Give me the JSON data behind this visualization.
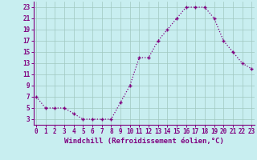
{
  "x": [
    0,
    1,
    2,
    3,
    4,
    5,
    6,
    7,
    8,
    9,
    10,
    11,
    12,
    13,
    14,
    15,
    16,
    17,
    18,
    19,
    20,
    21,
    22,
    23
  ],
  "y": [
    7,
    5,
    5,
    5,
    4,
    3,
    3,
    3,
    3,
    6,
    9,
    14,
    14,
    17,
    19,
    21,
    23,
    23,
    23,
    21,
    17,
    15,
    13,
    12
  ],
  "line_color": "#800080",
  "marker": "+",
  "marker_color": "#800080",
  "bg_color": "#c8eef0",
  "grid_color": "#a0c8c0",
  "xlabel": "Windchill (Refroidissement éolien,°C)",
  "xlabel_color": "#800080",
  "tick_color": "#800080",
  "spine_color": "#800080",
  "xlim": [
    0,
    23
  ],
  "ylim": [
    2,
    24
  ],
  "yticks": [
    3,
    5,
    7,
    9,
    11,
    13,
    15,
    17,
    19,
    21,
    23
  ],
  "xticks": [
    0,
    1,
    2,
    3,
    4,
    5,
    6,
    7,
    8,
    9,
    10,
    11,
    12,
    13,
    14,
    15,
    16,
    17,
    18,
    19,
    20,
    21,
    22,
    23
  ],
  "tick_fontsize": 5.5,
  "xlabel_fontsize": 6.5
}
